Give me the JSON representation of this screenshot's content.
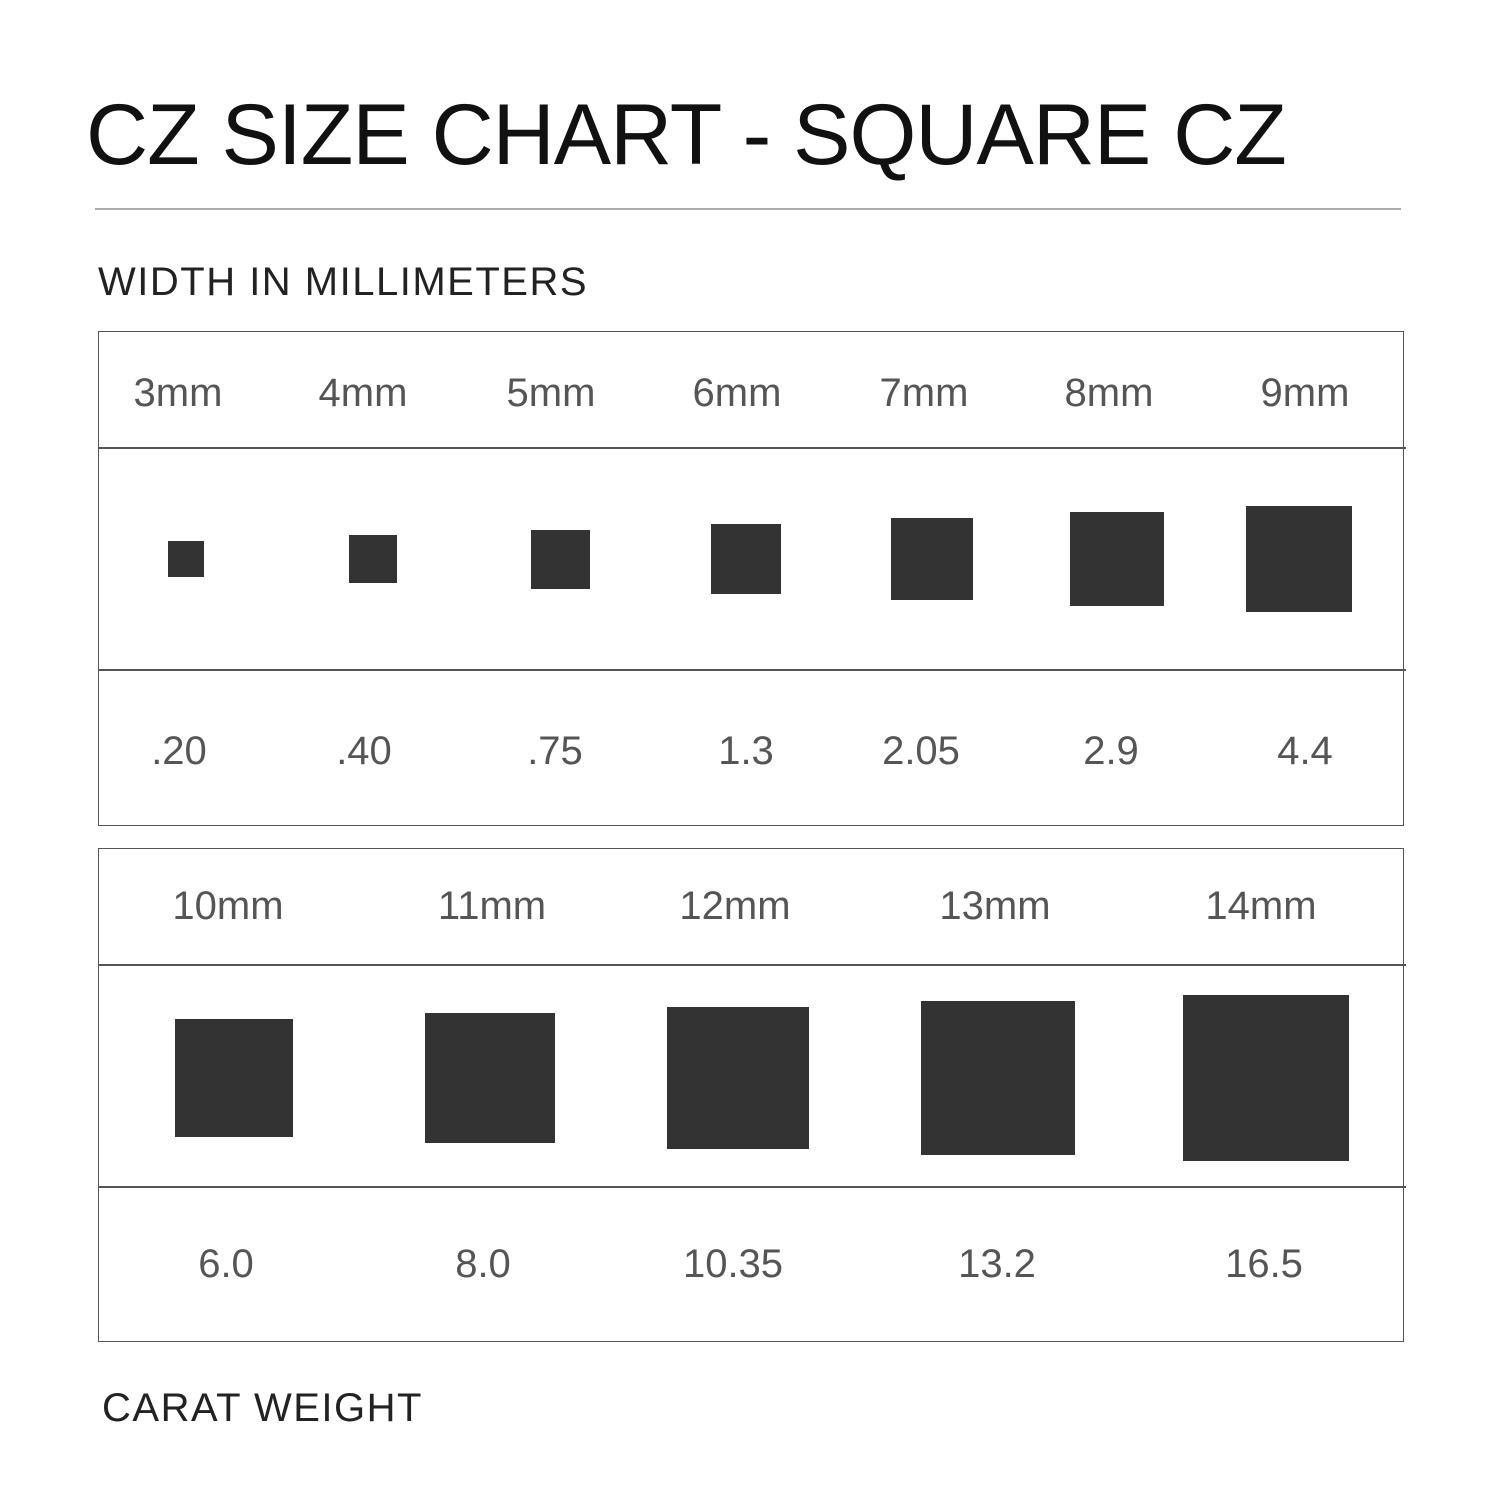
{
  "title": "CZ SIZE CHART - SQUARE CZ",
  "width_label": "WIDTH IN MILLIMETERS",
  "carat_label": "CARAT WEIGHT",
  "colors": {
    "stone": "#333333",
    "text": "#555555",
    "border": "#555555"
  },
  "chart_data": {
    "type": "table",
    "title": "CZ SIZE CHART - SQUARE CZ",
    "rows": [
      {
        "sizes": [
          "3mm",
          "4mm",
          "5mm",
          "6mm",
          "7mm",
          "8mm",
          "9mm"
        ],
        "mm": [
          3,
          4,
          5,
          6,
          7,
          8,
          9
        ],
        "carats": [
          ".20",
          ".40",
          ".75",
          "1.3",
          "2.05",
          "2.9",
          "4.4"
        ]
      },
      {
        "sizes": [
          "10mm",
          "11mm",
          "12mm",
          "13mm",
          "14mm"
        ],
        "mm": [
          10,
          11,
          12,
          13,
          14
        ],
        "carats": [
          "6.0",
          "8.0",
          "10.35",
          "13.2",
          "16.5"
        ]
      }
    ]
  }
}
